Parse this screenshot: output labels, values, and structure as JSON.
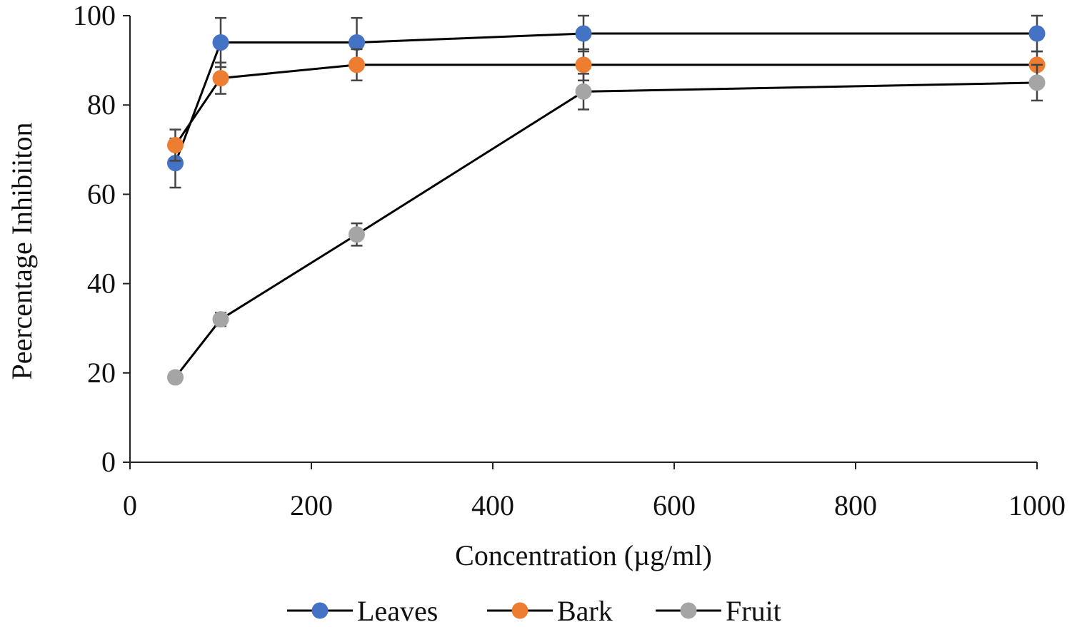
{
  "chart_data": {
    "type": "line",
    "title": "",
    "xlabel": "Concentration (µg/ml)",
    "ylabel": "Peercentage Inhibiiton",
    "xlim": [
      0,
      1000
    ],
    "ylim": [
      0,
      100
    ],
    "x_ticks": [
      0,
      200,
      400,
      600,
      800,
      1000
    ],
    "y_ticks": [
      0,
      20,
      40,
      60,
      80,
      100
    ],
    "x_tick_labels": [
      "0",
      "200",
      "400",
      "600",
      "800",
      "1000"
    ],
    "y_tick_labels": [
      "0",
      "20",
      "40",
      "60",
      "80",
      "100"
    ],
    "legend_position": "bottom",
    "grid": false,
    "x": [
      50,
      100,
      250,
      500,
      1000
    ],
    "series": [
      {
        "name": "Leaves",
        "color": "#4472C4",
        "values": [
          67,
          94,
          94,
          96,
          96
        ],
        "errors": [
          5.5,
          5.5,
          5.5,
          4,
          4
        ]
      },
      {
        "name": "Bark",
        "color": "#ED7D31",
        "values": [
          71,
          86,
          89,
          89,
          89
        ],
        "errors": [
          3.5,
          3.5,
          3.5,
          3.5,
          3
        ]
      },
      {
        "name": "Fruit",
        "color": "#A5A5A5",
        "values": [
          19,
          32,
          51,
          83,
          85
        ],
        "errors": [
          1,
          1.5,
          2.5,
          4,
          4
        ]
      }
    ]
  }
}
